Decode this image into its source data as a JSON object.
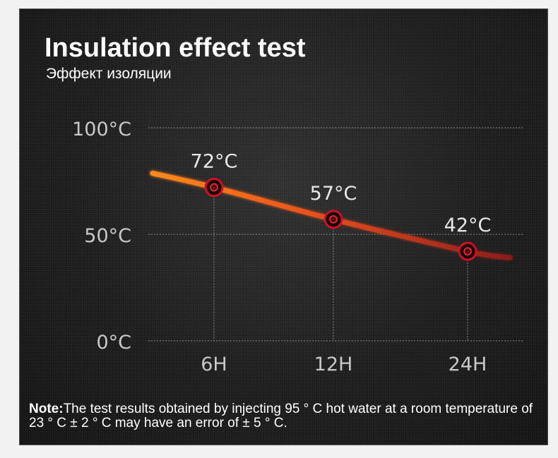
{
  "header": {
    "title": "Insulation effect test",
    "subtitle": "Эффект изоляции"
  },
  "chart_data": {
    "type": "line",
    "categories": [
      "6H",
      "12H",
      "24H"
    ],
    "values": [
      72,
      57,
      42
    ],
    "data_labels": [
      "72°C",
      "57°C",
      "42°C"
    ],
    "y_ticks": [
      {
        "value": 100,
        "label": "100°C"
      },
      {
        "value": 50,
        "label": "50°C"
      },
      {
        "value": 0,
        "label": "0°C"
      }
    ],
    "ylim": [
      0,
      100
    ],
    "grid": true,
    "colors": {
      "line_start": "#ff8a1c",
      "line_end": "#8a1d1d",
      "marker_ring": "#d01020",
      "marker_center": "#5a0a0a"
    }
  },
  "note": {
    "label": "Note:",
    "text": "The test results obtained by injecting 95 ° C hot water at a room temperature of 23 ° C ± 2 ° C may have an error of ± 5 ° C."
  }
}
